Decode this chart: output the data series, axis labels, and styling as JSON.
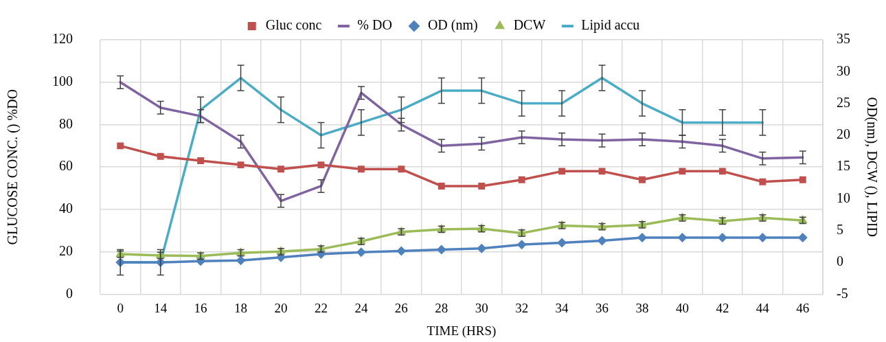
{
  "chart_data": {
    "type": "line",
    "xlabel": "TIME (HRS)",
    "ylabel": "GLUCOSE CONC. () %DO",
    "y2label": "OD(nm), DCW (), LIPID",
    "categories": [
      "0",
      "14",
      "16",
      "18",
      "20",
      "22",
      "24",
      "26",
      "28",
      "30",
      "32",
      "34",
      "36",
      "38",
      "40",
      "42",
      "44",
      "46"
    ],
    "ylim": [
      0,
      120
    ],
    "yticks": [
      0,
      20,
      40,
      60,
      80,
      100,
      120
    ],
    "y2lim": [
      -5,
      35
    ],
    "y2ticks": [
      -5,
      0,
      5,
      10,
      15,
      20,
      25,
      30,
      35
    ],
    "grid": true,
    "legend": "top",
    "line_style": "solid",
    "series": [
      {
        "name": "Gluc conc",
        "color": "#c0504d",
        "marker": "square",
        "values": [
          70,
          65,
          63,
          61,
          59,
          61,
          59,
          59,
          51,
          51,
          54,
          58,
          58,
          54,
          58,
          58,
          53,
          54
        ]
      },
      {
        "name": "% DO",
        "color": "#8064a2",
        "marker": "none",
        "values": [
          100,
          88,
          84,
          72,
          44,
          51,
          95,
          80,
          70,
          71,
          74,
          73,
          72.5,
          73,
          72,
          70,
          64,
          64.5
        ],
        "errors": [
          3,
          3,
          3,
          3,
          3,
          3,
          3,
          3,
          3,
          3,
          3,
          3,
          3,
          3,
          3,
          3,
          3,
          3
        ]
      },
      {
        "name": "OD (nm)",
        "color": "#4f81bd",
        "marker": "diamond",
        "axis": "y2",
        "values": [
          0,
          0,
          0.2,
          0.3,
          0.8,
          1.3,
          1.6,
          1.8,
          2.0,
          2.2,
          2.8,
          3.1,
          3.4,
          3.9,
          3.9,
          3.9,
          3.9,
          3.9
        ]
      },
      {
        "name": "DCW",
        "color": "#9bbb59",
        "marker": "triangle",
        "axis": "y2",
        "values": [
          1.3,
          1.1,
          1.0,
          1.5,
          1.7,
          2.1,
          3.3,
          4.8,
          5.2,
          5.3,
          4.6,
          5.8,
          5.6,
          5.9,
          7.0,
          6.5,
          7.0,
          6.6
        ],
        "errors": [
          0.5,
          0.5,
          0.5,
          0.5,
          0.5,
          0.5,
          0.5,
          0.5,
          0.5,
          0.5,
          0.5,
          0.5,
          0.5,
          0.5,
          0.5,
          0.5,
          0.5,
          0.5
        ]
      },
      {
        "name": "Lipid accu",
        "color": "#4bacc6",
        "marker": "none",
        "axis": "y2",
        "values": [
          0,
          0,
          24,
          29,
          24,
          20,
          22,
          24,
          27,
          27,
          25,
          25,
          29,
          25,
          22,
          22,
          22,
          null
        ],
        "errors": [
          2,
          2,
          2,
          2,
          2,
          2,
          2,
          2,
          2,
          2,
          2,
          2,
          2,
          2,
          2,
          2,
          2,
          null
        ]
      }
    ]
  }
}
